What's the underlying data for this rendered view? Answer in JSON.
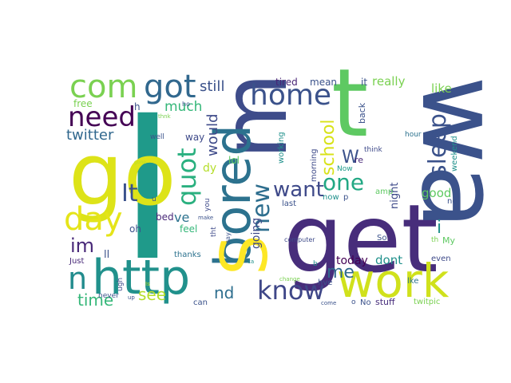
{
  "word_cloud": {
    "words": [
      {
        "text": "I",
        "color": "#1f9a8a"
      },
      {
        "text": "get",
        "color": "#472d7b"
      },
      {
        "text": "wa",
        "color": "#3b528b"
      },
      {
        "text": "m",
        "color": "#3e4c8a"
      },
      {
        "text": "t",
        "color": "#5ec962"
      },
      {
        "text": "go",
        "color": "#dde318"
      },
      {
        "text": "bored",
        "color": "#2c728e"
      },
      {
        "text": "S",
        "color": "#fde725"
      },
      {
        "text": "work",
        "color": "#d0e11c"
      },
      {
        "text": "http",
        "color": "#21918c"
      },
      {
        "text": "com",
        "color": "#7ad151"
      },
      {
        "text": "got",
        "color": "#31688e"
      },
      {
        "text": "need",
        "color": "#440154"
      },
      {
        "text": "day",
        "color": "#e5e419"
      },
      {
        "text": "home",
        "color": "#3b528b"
      },
      {
        "text": "know",
        "color": "#3f4788"
      },
      {
        "text": "sleep",
        "color": "#3b528b"
      },
      {
        "text": "quot",
        "color": "#2ab07f"
      },
      {
        "text": "new",
        "color": "#2e6e8e"
      },
      {
        "text": "It",
        "color": "#3b528b"
      },
      {
        "text": "n",
        "color": "#228c8d"
      },
      {
        "text": "im",
        "color": "#482878"
      },
      {
        "text": "one",
        "color": "#22a884"
      },
      {
        "text": "want",
        "color": "#3e4989"
      },
      {
        "text": "school",
        "color": "#d8e219"
      },
      {
        "text": "me",
        "color": "#31688e"
      },
      {
        "text": "W",
        "color": "#3b528b"
      },
      {
        "text": "time",
        "color": "#35b779"
      },
      {
        "text": "see",
        "color": "#b5de2b"
      },
      {
        "text": "nd",
        "color": "#2e6e8e"
      },
      {
        "text": "twitter",
        "color": "#31688e"
      },
      {
        "text": "much",
        "color": "#35b779"
      },
      {
        "text": "still",
        "color": "#3b528b"
      },
      {
        "text": "would",
        "color": "#3e4a89"
      },
      {
        "text": "good",
        "color": "#5ec962"
      },
      {
        "text": "dont",
        "color": "#21918c"
      },
      {
        "text": "really",
        "color": "#7ad151"
      },
      {
        "text": "like",
        "color": "#7ad151"
      },
      {
        "text": "tired",
        "color": "#482475"
      },
      {
        "text": "mean",
        "color": "#3b528b"
      },
      {
        "text": "it",
        "color": "#3b528b"
      },
      {
        "text": "i",
        "color": "#21918c"
      },
      {
        "text": "going",
        "color": "#3e4a89"
      },
      {
        "text": "today",
        "color": "#440154"
      },
      {
        "text": "ve",
        "color": "#2c728e"
      },
      {
        "text": "dy",
        "color": "#b5de2b"
      },
      {
        "text": "lol",
        "color": "#5ec962"
      },
      {
        "text": "way",
        "color": "#3e4a89"
      },
      {
        "text": "h",
        "color": "#3b528b"
      },
      {
        "text": "free",
        "color": "#7ad151"
      },
      {
        "text": "ll",
        "color": "#3b528b"
      },
      {
        "text": "bed",
        "color": "#482878"
      },
      {
        "text": "oh",
        "color": "#3b528b"
      },
      {
        "text": "feel",
        "color": "#35b779"
      },
      {
        "text": "back",
        "color": "#3b528b"
      },
      {
        "text": "night",
        "color": "#3e4a89"
      },
      {
        "text": "think",
        "color": "#3e4a89"
      },
      {
        "text": "re",
        "color": "#482878"
      },
      {
        "text": "Now",
        "color": "#1f9a8a"
      },
      {
        "text": "now",
        "color": "#21918c"
      },
      {
        "text": "amp",
        "color": "#5ec962"
      },
      {
        "text": "morning",
        "color": "#3e4a89"
      },
      {
        "text": "working",
        "color": "#21918c"
      },
      {
        "text": "last",
        "color": "#3b528b"
      },
      {
        "text": "weekend",
        "color": "#21918c"
      },
      {
        "text": "hour",
        "color": "#2c728e"
      },
      {
        "text": "no",
        "color": "#3b528b"
      },
      {
        "text": "So",
        "color": "#3b528b"
      },
      {
        "text": "th",
        "color": "#7ad151"
      },
      {
        "text": "My",
        "color": "#5ec962"
      },
      {
        "text": "even",
        "color": "#3e4a89"
      },
      {
        "text": "lke",
        "color": "#2c728e"
      },
      {
        "text": "No",
        "color": "#3b528b"
      },
      {
        "text": "stuff",
        "color": "#472d7b"
      },
      {
        "text": "twitpic",
        "color": "#7ad151"
      },
      {
        "text": "hve",
        "color": "#3b528b"
      },
      {
        "text": "computer",
        "color": "#3e4a89"
      },
      {
        "text": "b",
        "color": "#21918c"
      },
      {
        "text": "come",
        "color": "#3b528b"
      },
      {
        "text": "o",
        "color": "#3b528b"
      },
      {
        "text": "change",
        "color": "#7ad151"
      },
      {
        "text": "ca",
        "color": "#21918c"
      },
      {
        "text": "say",
        "color": "#3b528b"
      },
      {
        "text": "tht",
        "color": "#3e4a89"
      },
      {
        "text": "you",
        "color": "#3e4a89"
      },
      {
        "text": "thanks",
        "color": "#2c728e"
      },
      {
        "text": "can",
        "color": "#3b528b"
      },
      {
        "text": "Just",
        "color": "#482878"
      },
      {
        "text": "never",
        "color": "#3b528b"
      },
      {
        "text": "ugh",
        "color": "#3e4a89"
      },
      {
        "text": "up",
        "color": "#3b528b"
      },
      {
        "text": "make",
        "color": "#3b528b"
      },
      {
        "text": "well",
        "color": "#3b528b"
      },
      {
        "text": "ho",
        "color": "#3b528b"
      },
      {
        "text": "thnk",
        "color": "#7ad151"
      },
      {
        "text": "gone",
        "color": "#b5de2b"
      },
      {
        "text": "Is",
        "color": "#b5de2b"
      },
      {
        "text": "p",
        "color": "#3b528b"
      },
      {
        "text": "u",
        "color": "#3b528b"
      }
    ]
  }
}
